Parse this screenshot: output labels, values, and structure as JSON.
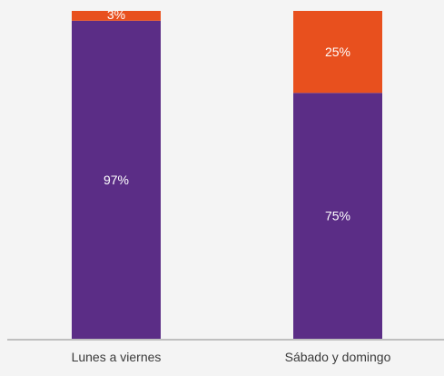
{
  "chart_data": {
    "type": "bar",
    "stacked": true,
    "percent": true,
    "categories": [
      "Lunes a viernes",
      "Sábado y domingo"
    ],
    "series": [
      {
        "values": [
          97,
          75
        ],
        "labels": [
          "97%",
          "75%"
        ],
        "color": "#5b2d86"
      },
      {
        "values": [
          3,
          25
        ],
        "labels": [
          "3%",
          "25%"
        ],
        "color": "#e8501e"
      }
    ],
    "ylim": [
      0,
      100
    ],
    "grid": false,
    "legend": "none",
    "title": "",
    "xlabel": "",
    "ylabel": ""
  }
}
